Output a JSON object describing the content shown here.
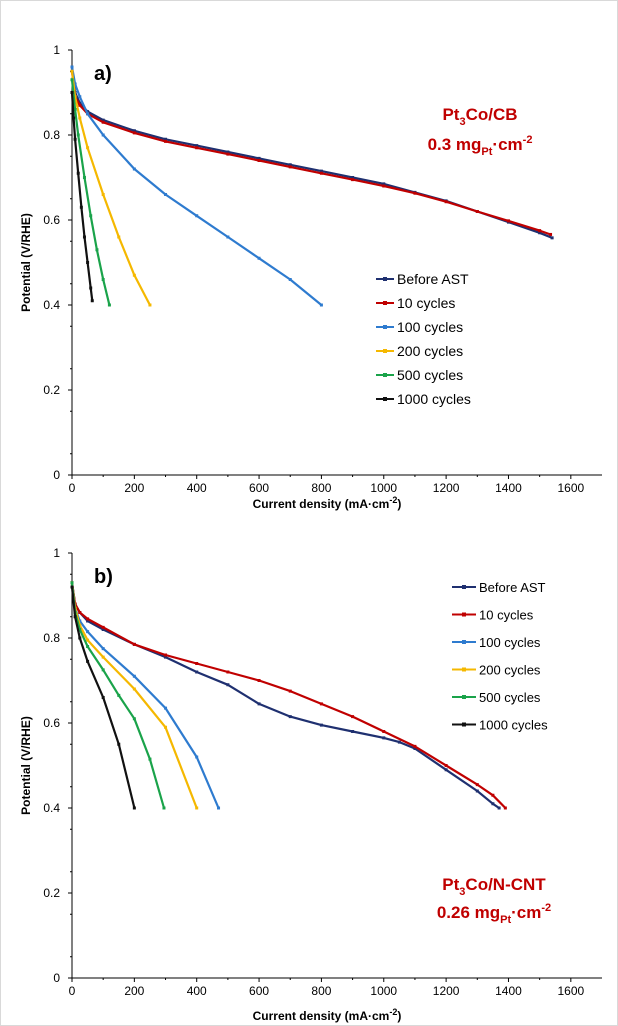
{
  "chart_data": [
    {
      "type": "line",
      "panel_label": "a)",
      "annotation": {
        "line1": {
          "base": "Pt",
          "sub": "3",
          "rest": "Co/CB"
        },
        "line2": {
          "pre": "0.3 mg",
          "sub": "Pt",
          "mid": "·cm",
          "sup": "-2"
        },
        "color": "#c00000"
      },
      "xlabel": "Current density (mA·cm",
      "xlabel_sup": "-2",
      "xlabel_post": ")",
      "ylabel": "Potential (V/RHE)",
      "xlim": [
        0,
        1700
      ],
      "ylim": [
        0,
        1
      ],
      "xticks": [
        "0",
        "200",
        "400",
        "600",
        "800",
        "1000",
        "1200",
        "1400",
        "1600"
      ],
      "yticks": [
        "0",
        "0.2",
        "0.4",
        "0.6",
        "0.8",
        "1"
      ],
      "legend_position": "center-right",
      "series": [
        {
          "name": "Before AST",
          "color": "#1f3070",
          "x": [
            0,
            10,
            25,
            50,
            100,
            200,
            300,
            400,
            500,
            600,
            700,
            800,
            900,
            1000,
            1100,
            1200,
            1300,
            1400,
            1500,
            1540
          ],
          "y": [
            0.96,
            0.9,
            0.875,
            0.855,
            0.835,
            0.81,
            0.79,
            0.775,
            0.76,
            0.745,
            0.73,
            0.715,
            0.7,
            0.685,
            0.665,
            0.645,
            0.62,
            0.595,
            0.57,
            0.558
          ]
        },
        {
          "name": "10 cycles",
          "color": "#c00000",
          "x": [
            0,
            10,
            25,
            50,
            100,
            200,
            300,
            400,
            500,
            600,
            700,
            800,
            900,
            1000,
            1100,
            1200,
            1300,
            1400,
            1500,
            1535
          ],
          "y": [
            0.95,
            0.89,
            0.87,
            0.85,
            0.83,
            0.805,
            0.785,
            0.77,
            0.755,
            0.74,
            0.725,
            0.71,
            0.695,
            0.68,
            0.663,
            0.643,
            0.62,
            0.598,
            0.575,
            0.566
          ]
        },
        {
          "name": "100 cycles",
          "color": "#2e7bcf",
          "x": [
            0,
            10,
            25,
            50,
            100,
            200,
            300,
            400,
            500,
            600,
            700,
            800
          ],
          "y": [
            0.96,
            0.92,
            0.89,
            0.85,
            0.8,
            0.72,
            0.66,
            0.61,
            0.56,
            0.51,
            0.46,
            0.4
          ]
        },
        {
          "name": "200 cycles",
          "color": "#f5b800",
          "x": [
            0,
            10,
            25,
            50,
            100,
            150,
            200,
            250
          ],
          "y": [
            0.95,
            0.89,
            0.84,
            0.77,
            0.66,
            0.56,
            0.47,
            0.4
          ]
        },
        {
          "name": "500 cycles",
          "color": "#1aa34a",
          "x": [
            0,
            10,
            20,
            40,
            60,
            80,
            100,
            120
          ],
          "y": [
            0.93,
            0.86,
            0.8,
            0.7,
            0.61,
            0.53,
            0.46,
            0.4
          ]
        },
        {
          "name": "1000 cycles",
          "color": "#111111",
          "x": [
            0,
            5,
            10,
            20,
            30,
            40,
            50,
            60,
            65
          ],
          "y": [
            0.9,
            0.84,
            0.79,
            0.71,
            0.63,
            0.56,
            0.5,
            0.44,
            0.41
          ]
        }
      ]
    },
    {
      "type": "line",
      "panel_label": "b)",
      "annotation": {
        "line1": {
          "base": "Pt",
          "sub": "3",
          "rest": "Co/N-CNT"
        },
        "line2": {
          "pre": "0.26 mg",
          "sub": "Pt",
          "mid": "·cm",
          "sup": "-2"
        },
        "color": "#c00000"
      },
      "xlabel": "Current density (mA·cm",
      "xlabel_sup": "-2",
      "xlabel_post": ")",
      "ylabel": "Potential (V/RHE)",
      "xlim": [
        0,
        1700
      ],
      "ylim": [
        0,
        1
      ],
      "xticks": [
        "0",
        "200",
        "400",
        "600",
        "800",
        "1000",
        "1200",
        "1400",
        "1600"
      ],
      "yticks": [
        "0",
        "0.2",
        "0.4",
        "0.6",
        "0.8",
        "1"
      ],
      "legend_position": "top-right",
      "series": [
        {
          "name": "Before AST",
          "color": "#1f3070",
          "x": [
            0,
            10,
            25,
            50,
            100,
            200,
            300,
            400,
            500,
            600,
            700,
            800,
            900,
            1000,
            1050,
            1100,
            1200,
            1300,
            1350,
            1370
          ],
          "y": [
            0.93,
            0.88,
            0.86,
            0.84,
            0.82,
            0.785,
            0.755,
            0.72,
            0.69,
            0.645,
            0.615,
            0.595,
            0.58,
            0.565,
            0.555,
            0.54,
            0.49,
            0.44,
            0.41,
            0.4
          ]
        },
        {
          "name": "10 cycles",
          "color": "#c00000",
          "x": [
            0,
            10,
            25,
            50,
            100,
            200,
            300,
            400,
            500,
            600,
            700,
            800,
            900,
            1000,
            1100,
            1200,
            1300,
            1350,
            1390
          ],
          "y": [
            0.93,
            0.88,
            0.86,
            0.845,
            0.825,
            0.785,
            0.76,
            0.74,
            0.72,
            0.7,
            0.675,
            0.645,
            0.615,
            0.58,
            0.545,
            0.5,
            0.455,
            0.43,
            0.4
          ]
        },
        {
          "name": "100 cycles",
          "color": "#2e7bcf",
          "x": [
            0,
            10,
            25,
            50,
            100,
            200,
            300,
            400,
            470
          ],
          "y": [
            0.93,
            0.87,
            0.84,
            0.815,
            0.775,
            0.71,
            0.635,
            0.52,
            0.4
          ]
        },
        {
          "name": "200 cycles",
          "color": "#f5b800",
          "x": [
            0,
            10,
            25,
            50,
            100,
            200,
            300,
            400
          ],
          "y": [
            0.93,
            0.87,
            0.83,
            0.795,
            0.755,
            0.68,
            0.59,
            0.4
          ]
        },
        {
          "name": "500 cycles",
          "color": "#1aa34a",
          "x": [
            0,
            10,
            25,
            50,
            100,
            150,
            200,
            250,
            295
          ],
          "y": [
            0.93,
            0.86,
            0.82,
            0.78,
            0.725,
            0.665,
            0.61,
            0.515,
            0.4
          ]
        },
        {
          "name": "1000 cycles",
          "color": "#111111",
          "x": [
            0,
            10,
            25,
            50,
            100,
            150,
            200
          ],
          "y": [
            0.92,
            0.85,
            0.8,
            0.745,
            0.66,
            0.55,
            0.4
          ]
        }
      ]
    }
  ]
}
